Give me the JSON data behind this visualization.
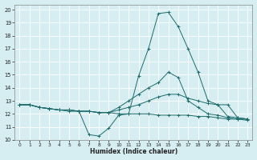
{
  "xlabel": "Humidex (Indice chaleur)",
  "xlim": [
    -0.5,
    23.5
  ],
  "ylim": [
    10,
    20.4
  ],
  "yticks": [
    10,
    11,
    12,
    13,
    14,
    15,
    16,
    17,
    18,
    19,
    20
  ],
  "xticks": [
    0,
    1,
    2,
    3,
    4,
    5,
    6,
    7,
    8,
    9,
    10,
    11,
    12,
    13,
    14,
    15,
    16,
    17,
    18,
    19,
    20,
    21,
    22,
    23
  ],
  "bg_color": "#d6eef2",
  "line_color": "#1e6b6b",
  "series1_x": [
    0,
    1,
    2,
    3,
    4,
    5,
    6,
    7,
    8,
    9,
    10,
    11,
    12,
    13,
    14,
    15,
    16,
    17,
    18,
    19,
    20,
    21,
    22,
    23
  ],
  "series1_y": [
    12.7,
    12.7,
    12.5,
    12.4,
    12.3,
    12.2,
    12.2,
    10.4,
    10.3,
    10.9,
    11.9,
    12.0,
    14.9,
    17.0,
    19.7,
    19.8,
    18.7,
    17.0,
    15.2,
    13.0,
    12.7,
    11.8,
    11.7,
    11.6
  ],
  "series2_x": [
    0,
    1,
    2,
    3,
    4,
    5,
    6,
    7,
    8,
    9,
    10,
    11,
    12,
    13,
    14,
    15,
    16,
    17,
    18,
    19,
    20,
    21,
    22,
    23
  ],
  "series2_y": [
    12.7,
    12.7,
    12.5,
    12.4,
    12.3,
    12.3,
    12.2,
    12.2,
    12.1,
    12.1,
    12.5,
    13.0,
    13.5,
    14.0,
    14.4,
    15.2,
    14.8,
    13.0,
    12.5,
    12.0,
    11.9,
    11.7,
    11.6,
    11.6
  ],
  "series3_x": [
    0,
    1,
    2,
    3,
    4,
    5,
    6,
    7,
    8,
    9,
    10,
    11,
    12,
    13,
    14,
    15,
    16,
    17,
    18,
    19,
    20,
    21,
    22,
    23
  ],
  "series3_y": [
    12.7,
    12.7,
    12.5,
    12.4,
    12.3,
    12.3,
    12.2,
    12.2,
    12.1,
    12.1,
    12.0,
    12.0,
    12.0,
    12.0,
    11.9,
    11.9,
    11.9,
    11.9,
    11.8,
    11.8,
    11.7,
    11.6,
    11.6,
    11.5
  ],
  "series4_x": [
    0,
    1,
    2,
    3,
    4,
    5,
    6,
    7,
    8,
    9,
    10,
    11,
    12,
    13,
    14,
    15,
    16,
    17,
    18,
    19,
    20,
    21,
    22,
    23
  ],
  "series4_y": [
    12.7,
    12.7,
    12.5,
    12.4,
    12.3,
    12.3,
    12.2,
    12.2,
    12.1,
    12.1,
    12.3,
    12.5,
    12.7,
    13.0,
    13.3,
    13.5,
    13.5,
    13.2,
    13.0,
    12.8,
    12.7,
    12.7,
    11.7,
    11.6
  ]
}
